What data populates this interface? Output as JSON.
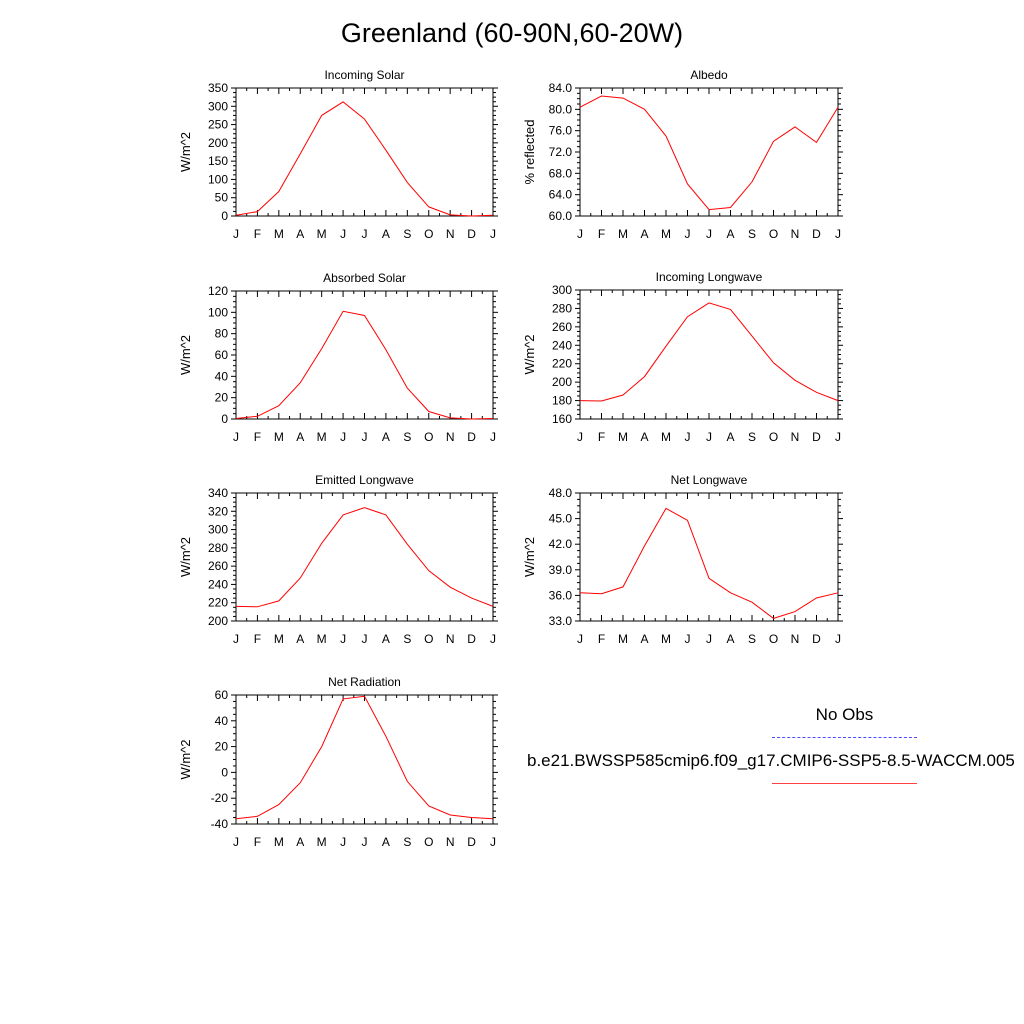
{
  "title": "Greenland (60-90N,60-20W)",
  "legend": {
    "obs_label": "No Obs",
    "run_label": "b.e21.BWSSP585cmip6.f09_g17.CMIP6-SSP5-8.5-WACCM.005",
    "obs_color": "#4b4bff",
    "run_color": "#ff0000"
  },
  "chart_data": [
    {
      "type": "line",
      "title": "Incoming Solar",
      "ylabel": "W/m^2",
      "x": [
        "J",
        "F",
        "M",
        "A",
        "M",
        "J",
        "J",
        "A",
        "S",
        "O",
        "N",
        "D",
        "J"
      ],
      "ylim": [
        0,
        350
      ],
      "yticks": [
        "0",
        "50",
        "100",
        "150",
        "200",
        "250",
        "300",
        "350"
      ],
      "ytick_values": [
        0,
        50,
        100,
        150,
        200,
        250,
        300,
        350
      ],
      "series": [
        {
          "values": [
            2,
            12,
            67,
            170,
            275,
            312,
            265,
            180,
            92,
            25,
            3,
            0,
            2
          ]
        }
      ]
    },
    {
      "type": "line",
      "title": "Albedo",
      "ylabel": "% reflected",
      "x": [
        "J",
        "F",
        "M",
        "A",
        "M",
        "J",
        "J",
        "A",
        "S",
        "O",
        "N",
        "D",
        "J"
      ],
      "ylim": [
        60,
        84
      ],
      "yticks": [
        "60.0",
        "64.0",
        "68.0",
        "72.0",
        "76.0",
        "80.0",
        "84.0"
      ],
      "ytick_values": [
        60,
        64,
        68,
        72,
        76,
        80,
        84
      ],
      "series": [
        {
          "values": [
            80.4,
            82.5,
            82.1,
            80.0,
            75.0,
            66.0,
            61.2,
            61.6,
            66.4,
            74.0,
            76.7,
            73.8,
            80.4
          ]
        }
      ]
    },
    {
      "type": "line",
      "title": "Absorbed Solar",
      "ylabel": "W/m^2",
      "x": [
        "J",
        "F",
        "M",
        "A",
        "M",
        "J",
        "J",
        "A",
        "S",
        "O",
        "N",
        "D",
        "J"
      ],
      "ylim": [
        0,
        120
      ],
      "yticks": [
        "0",
        "20",
        "40",
        "60",
        "80",
        "100",
        "120"
      ],
      "ytick_values": [
        0,
        20,
        40,
        60,
        80,
        100,
        120
      ],
      "series": [
        {
          "values": [
            0.5,
            2.5,
            12.5,
            34,
            66,
            101,
            97,
            65,
            29,
            7,
            1,
            0,
            0.5
          ]
        }
      ]
    },
    {
      "type": "line",
      "title": "Incoming Longwave",
      "ylabel": "W/m^2",
      "x": [
        "J",
        "F",
        "M",
        "A",
        "M",
        "J",
        "J",
        "A",
        "S",
        "O",
        "N",
        "D",
        "J"
      ],
      "ylim": [
        160,
        300
      ],
      "yticks": [
        "160",
        "180",
        "200",
        "220",
        "240",
        "260",
        "280",
        "300"
      ],
      "ytick_values": [
        160,
        180,
        200,
        220,
        240,
        260,
        280,
        300
      ],
      "series": [
        {
          "values": [
            180,
            179.5,
            186,
            206,
            239,
            271,
            286,
            279,
            250,
            221,
            202,
            189,
            180
          ]
        }
      ]
    },
    {
      "type": "line",
      "title": "Emitted Longwave",
      "ylabel": "W/m^2",
      "x": [
        "J",
        "F",
        "M",
        "A",
        "M",
        "J",
        "J",
        "A",
        "S",
        "O",
        "N",
        "D",
        "J"
      ],
      "ylim": [
        200,
        340
      ],
      "yticks": [
        "200",
        "220",
        "240",
        "260",
        "280",
        "300",
        "320",
        "340"
      ],
      "ytick_values": [
        200,
        220,
        240,
        260,
        280,
        300,
        320,
        340
      ],
      "series": [
        {
          "values": [
            216,
            215.5,
            222,
            247,
            285,
            316,
            324,
            316,
            284,
            255,
            237,
            225,
            216
          ]
        }
      ]
    },
    {
      "type": "line",
      "title": "Net Longwave",
      "ylabel": "W/m^2",
      "x": [
        "J",
        "F",
        "M",
        "A",
        "M",
        "J",
        "J",
        "A",
        "S",
        "O",
        "N",
        "D",
        "J"
      ],
      "ylim": [
        33,
        48
      ],
      "yticks": [
        "33.0",
        "36.0",
        "39.0",
        "42.0",
        "45.0",
        "48.0"
      ],
      "ytick_values": [
        33,
        36,
        39,
        42,
        45,
        48
      ],
      "series": [
        {
          "values": [
            36.3,
            36.2,
            37.0,
            41.8,
            46.2,
            44.8,
            38.0,
            36.3,
            35.2,
            33.3,
            34.1,
            35.7,
            36.3
          ]
        }
      ]
    },
    {
      "type": "line",
      "title": "Net Radiation",
      "ylabel": "W/m^2",
      "x": [
        "J",
        "F",
        "M",
        "A",
        "M",
        "J",
        "J",
        "A",
        "S",
        "O",
        "N",
        "D",
        "J"
      ],
      "ylim": [
        -40,
        60
      ],
      "yticks": [
        "-40",
        "-20",
        "0",
        "20",
        "40",
        "60"
      ],
      "ytick_values": [
        -40,
        -20,
        0,
        20,
        40,
        60
      ],
      "series": [
        {
          "values": [
            -36,
            -34,
            -25,
            -8,
            20,
            57,
            59,
            28,
            -7,
            -26,
            -33,
            -35,
            -36
          ]
        }
      ]
    }
  ]
}
